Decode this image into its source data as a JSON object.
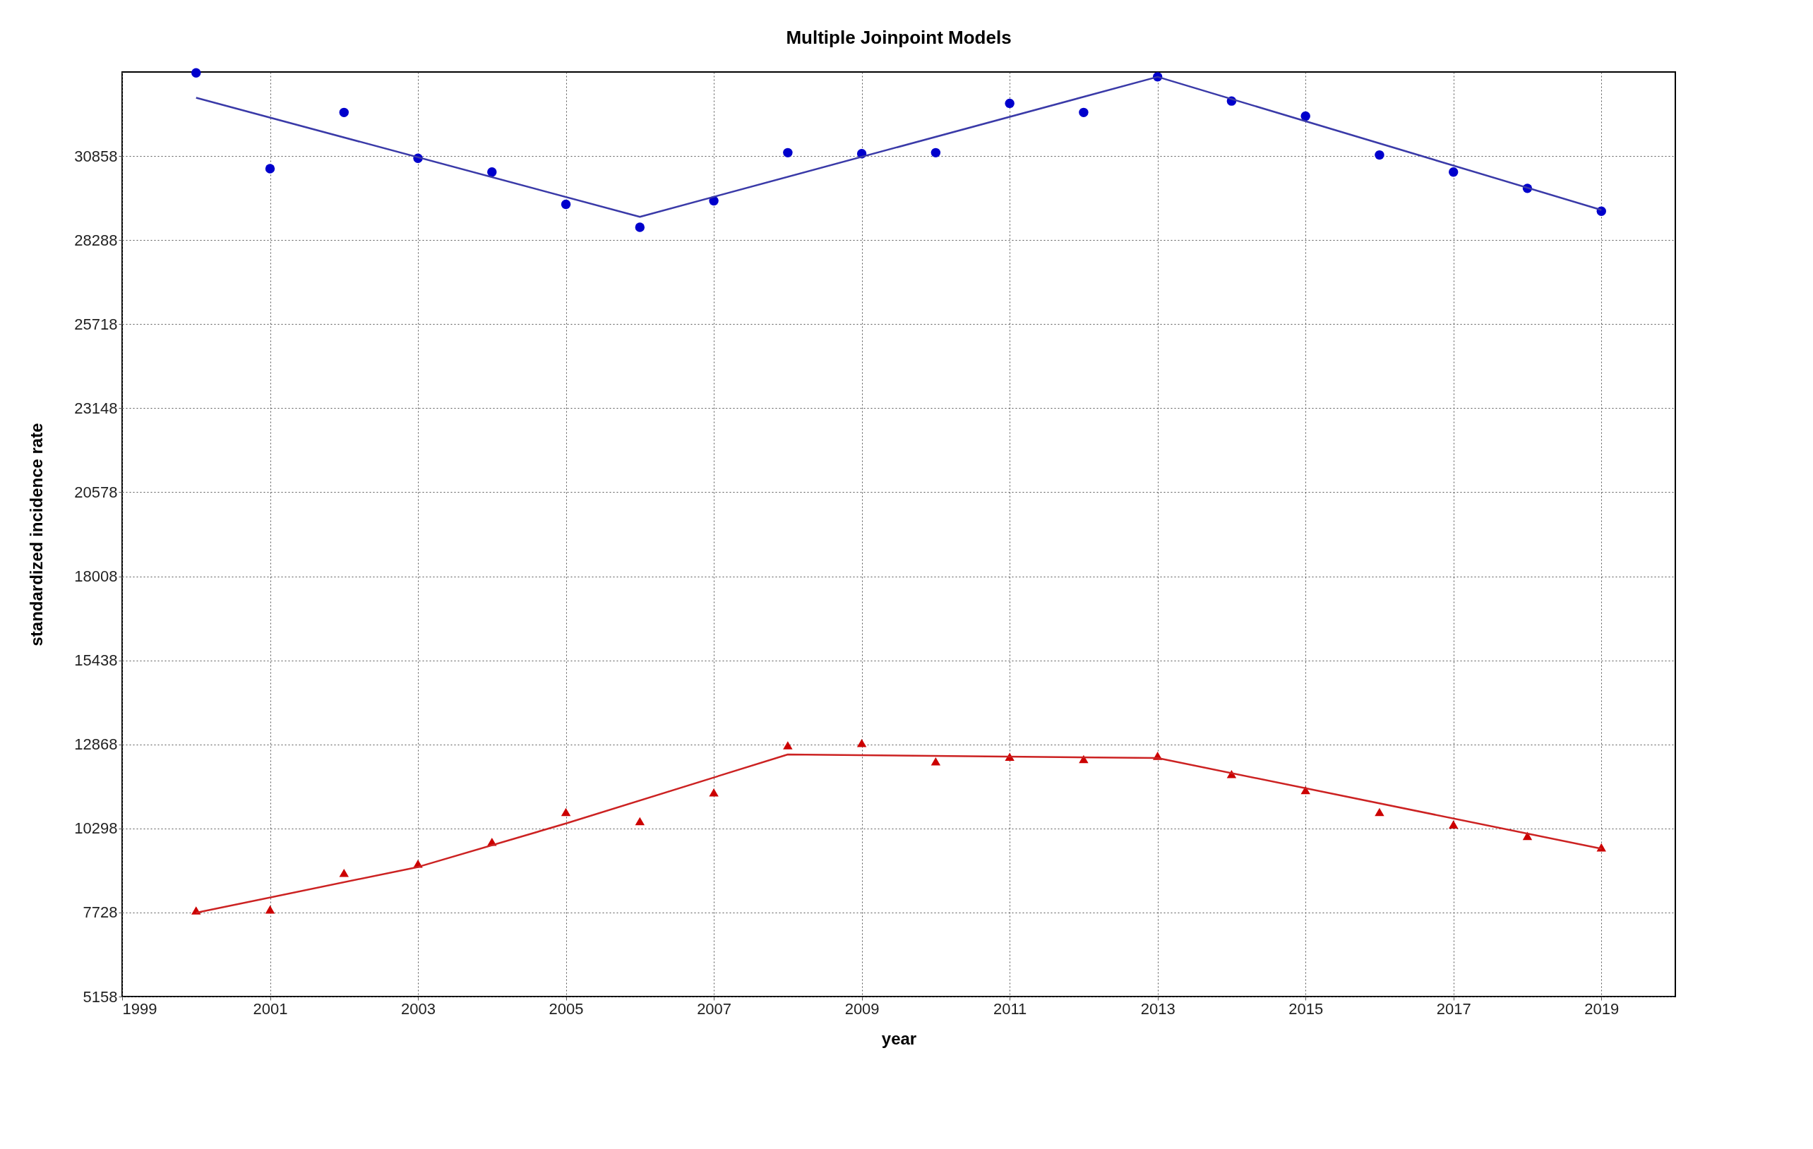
{
  "chart_data": {
    "type": "scatter",
    "title": "Multiple Joinpoint Models",
    "xlabel": "year",
    "ylabel": "standardized incidence rate",
    "xlim": [
      1999,
      2020
    ],
    "xticks": [
      1999,
      2001,
      2003,
      2005,
      2007,
      2009,
      2011,
      2013,
      2015,
      2017,
      2019
    ],
    "ylim": [
      5158,
      33428
    ],
    "yticks": [
      5158,
      7728,
      10298,
      12868,
      15438,
      18008,
      20578,
      23148,
      25718,
      28288,
      30858
    ],
    "grid": true,
    "series": [
      {
        "marker": "circle",
        "color": "#0000cc",
        "x": [
          2000,
          2001,
          2002,
          2003,
          2004,
          2005,
          2006,
          2007,
          2008,
          2009,
          2010,
          2011,
          2012,
          2013,
          2014,
          2015,
          2016,
          2017,
          2018,
          2019
        ],
        "values": [
          33400,
          30470,
          32190,
          30790,
          30370,
          29380,
          28680,
          29490,
          30960,
          30930,
          30960,
          32470,
          32190,
          33280,
          32540,
          32080,
          30890,
          30370,
          29870,
          29170
        ]
      },
      {
        "type": "line",
        "line_style": "solid",
        "color": "#3a3aa8",
        "x": [
          2000,
          2006,
          2013,
          2019
        ],
        "values": [
          32640,
          29000,
          33280,
          29210
        ]
      },
      {
        "marker": "triangle",
        "color": "#cc0000",
        "x": [
          2000,
          2001,
          2002,
          2003,
          2004,
          2005,
          2006,
          2007,
          2008,
          2009,
          2010,
          2011,
          2012,
          2013,
          2014,
          2015,
          2016,
          2017,
          2018,
          2019
        ],
        "values": [
          7790,
          7820,
          8940,
          9220,
          9890,
          10800,
          10520,
          11400,
          12840,
          12910,
          12350,
          12490,
          12420,
          12520,
          11960,
          11470,
          10800,
          10420,
          10070,
          9720
        ]
      },
      {
        "type": "line",
        "line_style": "solid",
        "color": "#cc2222",
        "x": [
          2000,
          2003,
          2005,
          2008,
          2013,
          2019
        ],
        "values": [
          7720,
          9120,
          10450,
          12560,
          12450,
          9680
        ]
      }
    ]
  }
}
